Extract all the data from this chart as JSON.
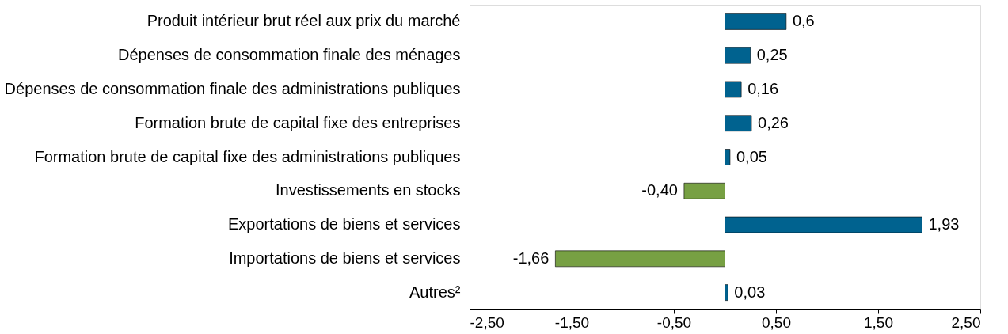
{
  "chart_data": {
    "type": "bar",
    "orientation": "horizontal",
    "categories": [
      "Produit intérieur brut réel aux prix du marché",
      "Dépenses de consommation finale des ménages",
      "Dépenses de consommation finale des administrations publiques",
      "Formation brute de capital fixe des entreprises",
      "Formation brute de capital fixe des administrations publiques",
      "Investissements en stocks",
      "Exportations de biens et services",
      "Importations de biens et services",
      "Autres²"
    ],
    "values": [
      0.6,
      0.25,
      0.16,
      0.26,
      0.05,
      -0.4,
      1.93,
      -1.66,
      0.03
    ],
    "value_labels": [
      "0,6",
      "0,25",
      "0,16",
      "0,26",
      "0,05",
      "-0,40",
      "1,93",
      "-1,66",
      "0,03"
    ],
    "colors": [
      "#00628f",
      "#00628f",
      "#00628f",
      "#00628f",
      "#00628f",
      "#77a043",
      "#00628f",
      "#77a043",
      "#00628f"
    ],
    "xlim": [
      -2.5,
      2.5
    ],
    "xticks": [
      {
        "value": -2.5,
        "label": "-2,50"
      },
      {
        "value": -1.5,
        "label": "-1,50"
      },
      {
        "value": -0.5,
        "label": "-0,50"
      },
      {
        "value": 0.5,
        "label": "0,50"
      },
      {
        "value": 1.5,
        "label": "1,50"
      },
      {
        "value": 2.5,
        "label": "2,50"
      }
    ],
    "ref_lines": [
      {
        "axis": "x",
        "value": 0,
        "color": "#000000",
        "line_style": "solid"
      }
    ],
    "grid": false
  }
}
